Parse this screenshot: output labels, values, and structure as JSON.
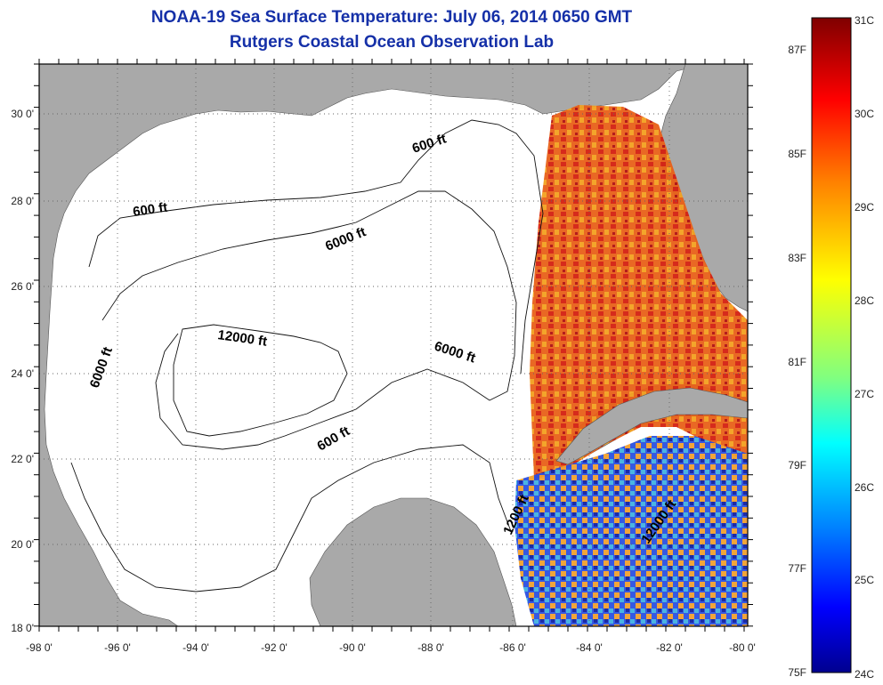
{
  "title": "NOAA-19 Sea Surface Temperature:  July 06, 2014 0650 GMT",
  "subtitle": "Rutgers Coastal Ocean Observation Lab",
  "map": {
    "lon_labels": [
      "-98 0'",
      "-96 0'",
      "-94 0'",
      "-92 0'",
      "-90 0'",
      "-88 0'",
      "-86 0'",
      "-84 0'",
      "-82 0'",
      "-80 0'"
    ],
    "lat_labels": [
      "30 0'",
      "28 0'",
      "26 0'",
      "24 0'",
      "22 0'",
      "20 0'",
      "18 0'"
    ],
    "lon_range": [
      -98,
      -80
    ],
    "lat_range": [
      18,
      31
    ],
    "grid": "dotted",
    "contour_labels": [
      "600 ft",
      "600 ft",
      "6000 ft",
      "12000 ft",
      "6000 ft",
      "6000 ft",
      "600 ft",
      "1200 ft",
      "12000 ft"
    ],
    "colors": {
      "land": "#a9a9a9",
      "ocean_no_data": "#ffffff"
    }
  },
  "colorbar": {
    "celsius_labels": [
      "31C",
      "30C",
      "29C",
      "28C",
      "27C",
      "26C",
      "25C",
      "24C"
    ],
    "fahrenheit_labels": [
      "87F",
      "85F",
      "83F",
      "81F",
      "79F",
      "77F",
      "75F"
    ],
    "range_c": [
      24,
      31
    ],
    "stops": [
      "#7f0000",
      "#ff0000",
      "#ff8000",
      "#ffff00",
      "#80ff80",
      "#00ffff",
      "#0080ff",
      "#0000ff",
      "#00008f"
    ]
  }
}
